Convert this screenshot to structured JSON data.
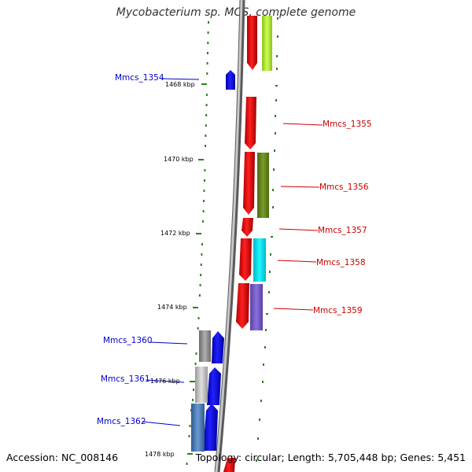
{
  "header": {
    "title": "Mycobacterium sp. MCS, complete genome"
  },
  "footer": {
    "accession": "Accession: NC_008146",
    "topology": "Topology: circular; Length: 5,705,448 bp; Genes: 5,451"
  },
  "colors": {
    "cds": "#ff0000",
    "forward_label": "#0000cc",
    "reverse_label": "#cc0000",
    "backbone": "#888888",
    "ticks": "#2e7d1e"
  },
  "scale": {
    "labels": [
      "1468 kbp",
      "1470 kbp",
      "1472 kbp",
      "1474 kbp",
      "1476 kbp",
      "1478 kbp"
    ]
  },
  "genes_left": [
    {
      "label": "Mmcs_1354"
    },
    {
      "label": "Mmcs_1360"
    },
    {
      "label": "Mmcs_1361"
    },
    {
      "label": "Mmcs_1362"
    }
  ],
  "genes_right": [
    {
      "label": "Mmcs_1355"
    },
    {
      "label": "Mmcs_1356"
    },
    {
      "label": "Mmcs_1357"
    },
    {
      "label": "Mmcs_1358"
    },
    {
      "label": "Mmcs_1359"
    }
  ]
}
